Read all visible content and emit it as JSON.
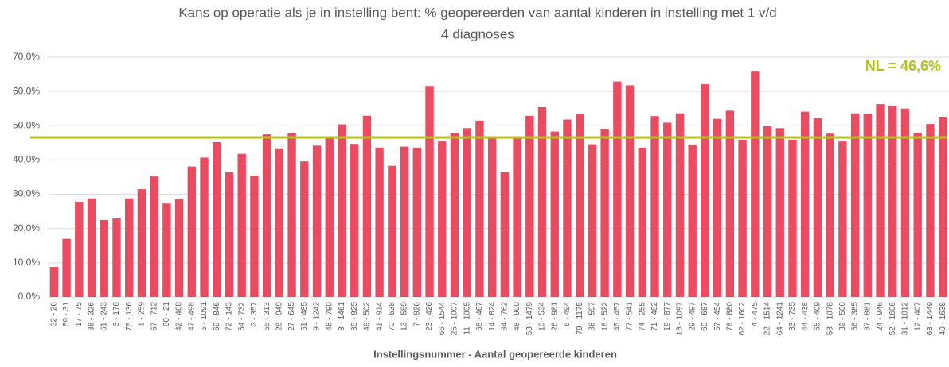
{
  "chart_data": {
    "type": "bar",
    "title": [
      "Kans op operatie als je in instelling bent: % geopereerden van aantal kinderen in instelling met 1 v/d",
      "4 diagnoses"
    ],
    "x_label": "Instellingsnummer - Aantal geopereerde kinderen",
    "categories": [
      "32 - 26",
      "59 - 31",
      "17 - 75",
      "38 - 326",
      "61 - 243",
      "3 - 176",
      "75 - 136",
      "1 - 259",
      "67 - 712",
      "80 - 21",
      "42 - 468",
      "47 - 498",
      "5 - 1091",
      "69 - 846",
      "72 - 143",
      "54 - 732",
      "2 - 357",
      "55 - 313",
      "28 - 949",
      "27 - 645",
      "51 - 485",
      "9 - 1242",
      "46 - 790",
      "8 - 1461",
      "35 - 925",
      "49 - 502",
      "41 - 914",
      "70 - 538",
      "13 - 589",
      "7 - 926",
      "23 - 426",
      "66 - 1544",
      "25 - 1007",
      "11 - 1005",
      "68 - 467",
      "14 - 824",
      "34 - 762",
      "48 - 900",
      "53 - 1479",
      "10 - 534",
      "26 - 981",
      "6 - 494",
      "79 - 1175",
      "36 - 597",
      "18 - 522",
      "45 - 457",
      "77 - 541",
      "74 - 255",
      "71 - 482",
      "19 - 877",
      "16 - 1097",
      "29 - 497",
      "60 - 687",
      "57 - 454",
      "78 - 880",
      "62 - 1602",
      "4 - 475",
      "22 - 1514",
      "64 - 1241",
      "33 - 735",
      "44 - 438",
      "65 - 409",
      "58 - 1078",
      "39 - 500",
      "56 - 385",
      "37 - 881",
      "24 - 946",
      "52 - 1606",
      "31 - 1012",
      "12 - 407",
      "63 - 1449",
      "40 - 1638"
    ],
    "values": [
      8.8,
      17,
      27.8,
      28.8,
      22.5,
      23,
      28.8,
      31.5,
      35.2,
      27.3,
      28.6,
      38.1,
      40.7,
      45.2,
      36.4,
      41.8,
      35.4,
      47.5,
      43.4,
      47.8,
      39.6,
      44.2,
      46.7,
      50.4,
      44.7,
      52.9,
      43.6,
      38.3,
      43.9,
      43.6,
      61.6,
      45.4,
      47.8,
      49.3,
      51.5,
      46.4,
      36.4,
      46.4,
      52.9,
      55.4,
      48.3,
      51.8,
      53.3,
      44.6,
      49.0,
      62.9,
      61.8,
      43.6,
      52.8,
      50.9,
      53.6,
      44.4,
      62.1,
      52.0,
      54.4,
      45.9,
      65.8,
      49.9,
      49.3,
      45.9,
      54.1,
      52.2,
      47.7,
      45.4,
      53.6,
      53.4,
      56.3,
      55.7,
      55.0,
      47.8,
      50.5,
      52.6
    ],
    "color": "#e94b60",
    "ylim": [
      0,
      70
    ],
    "yticks": [
      {
        "value": 0,
        "label": "0,0%"
      },
      {
        "value": 10,
        "label": "10,0%"
      },
      {
        "value": 20,
        "label": "20,0%"
      },
      {
        "value": 30,
        "label": "30,0%"
      },
      {
        "value": 40,
        "label": "40,0%"
      },
      {
        "value": 50,
        "label": "50,0%"
      },
      {
        "value": 60,
        "label": "60,0%"
      },
      {
        "value": 70,
        "label": "70,0%"
      }
    ],
    "grid": true,
    "reference_line": {
      "value": 46.6,
      "label": "NL = 46,6%",
      "color": "#b5c21b"
    }
  }
}
